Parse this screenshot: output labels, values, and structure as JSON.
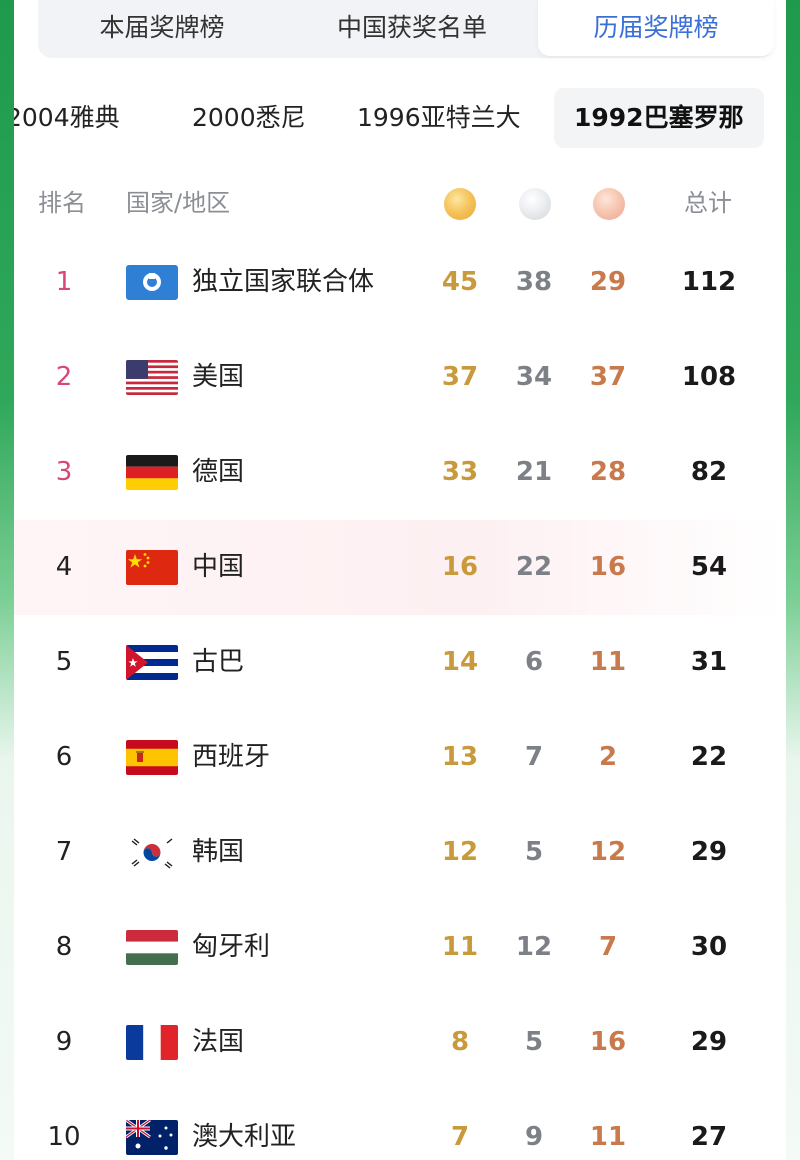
{
  "top_tabs": [
    {
      "label": "本届奖牌榜"
    },
    {
      "label": "中国获奖名单"
    },
    {
      "label": "历届奖牌榜"
    }
  ],
  "year_tabs": [
    {
      "label": "2004雅典"
    },
    {
      "label": "2000悉尼"
    },
    {
      "label": "1996亚特兰大"
    },
    {
      "label": "1992巴塞罗那"
    }
  ],
  "header": {
    "rank": "排名",
    "country": "国家/地区",
    "gold_icon": "gold-medal-icon",
    "silver_icon": "silver-medal-icon",
    "bronze_icon": "bronze-medal-icon",
    "total": "总计"
  },
  "rows": [
    {
      "rank": "1",
      "name": "独立国家联合体",
      "gold": "45",
      "silver": "38",
      "bronze": "29",
      "total": "112",
      "flag": "unified-team-flag-icon"
    },
    {
      "rank": "2",
      "name": "美国",
      "gold": "37",
      "silver": "34",
      "bronze": "37",
      "total": "108",
      "flag": "usa-flag-icon"
    },
    {
      "rank": "3",
      "name": "德国",
      "gold": "33",
      "silver": "21",
      "bronze": "28",
      "total": "82",
      "flag": "germany-flag-icon"
    },
    {
      "rank": "4",
      "name": "中国",
      "gold": "16",
      "silver": "22",
      "bronze": "16",
      "total": "54",
      "flag": "china-flag-icon"
    },
    {
      "rank": "5",
      "name": "古巴",
      "gold": "14",
      "silver": "6",
      "bronze": "11",
      "total": "31",
      "flag": "cuba-flag-icon"
    },
    {
      "rank": "6",
      "name": "西班牙",
      "gold": "13",
      "silver": "7",
      "bronze": "2",
      "total": "22",
      "flag": "spain-flag-icon"
    },
    {
      "rank": "7",
      "name": "韩国",
      "gold": "12",
      "silver": "5",
      "bronze": "12",
      "total": "29",
      "flag": "south-korea-flag-icon"
    },
    {
      "rank": "8",
      "name": "匈牙利",
      "gold": "11",
      "silver": "12",
      "bronze": "7",
      "total": "30",
      "flag": "hungary-flag-icon"
    },
    {
      "rank": "9",
      "name": "法国",
      "gold": "8",
      "silver": "5",
      "bronze": "16",
      "total": "29",
      "flag": "france-flag-icon"
    },
    {
      "rank": "10",
      "name": "澳大利亚",
      "gold": "7",
      "silver": "9",
      "bronze": "11",
      "total": "27",
      "flag": "australia-flag-icon"
    }
  ],
  "colors": {
    "active_tab": "#3a6fd8",
    "top_rank": "#d9467a",
    "gold_text": "#c99a3c",
    "silver_text": "#7d8187",
    "bronze_text": "#c97a4d"
  }
}
